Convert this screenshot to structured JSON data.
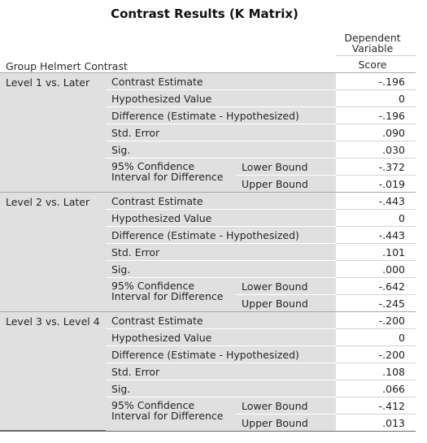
{
  "title": "Contrast Results (K Matrix)",
  "header": {
    "dependent_variable": "Dependent Variable",
    "score": "Score",
    "row_label": "Group Helmert Contrast"
  },
  "stat_labels": {
    "contrast_estimate": "Contrast Estimate",
    "hypothesized_value": "Hypothesized Value",
    "difference": "Difference (Estimate - Hypothesized)",
    "std_error": "Std. Error",
    "sig": "Sig.",
    "ci_line1": "95% Confidence",
    "ci_line2": "Interval for Difference",
    "lower_bound": "Lower Bound",
    "upper_bound": "Upper Bound"
  },
  "groups": [
    {
      "label": "Level 1 vs. Later",
      "contrast_estimate": "-.196",
      "hypothesized_value": "0",
      "difference": "-.196",
      "std_error": ".090",
      "sig": ".030",
      "lower_bound": "-.372",
      "upper_bound": "-.019"
    },
    {
      "label": "Level 2 vs. Later",
      "contrast_estimate": "-.443",
      "hypothesized_value": "0",
      "difference": "-.443",
      "std_error": ".101",
      "sig": ".000",
      "lower_bound": "-.642",
      "upper_bound": "-.245"
    },
    {
      "label": "Level 3 vs. Level 4",
      "contrast_estimate": "-.200",
      "hypothesized_value": "0",
      "difference": "-.200",
      "std_error": ".108",
      "sig": ".066",
      "lower_bound": "-.412",
      "upper_bound": ".013"
    }
  ]
}
